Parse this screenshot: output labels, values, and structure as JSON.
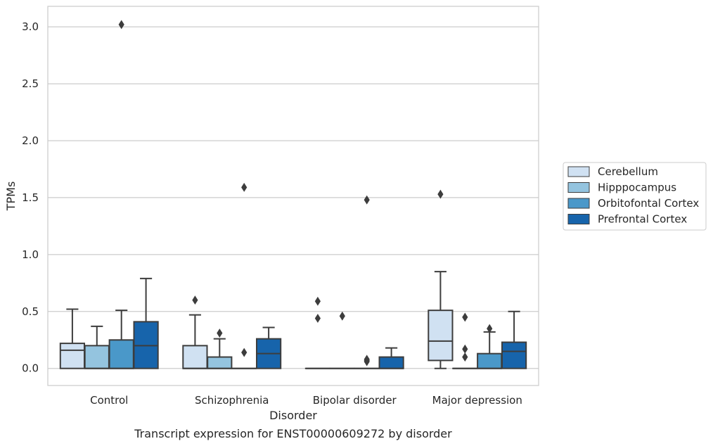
{
  "chart_data": {
    "type": "box",
    "caption": "Transcript expression for ENST00000609272 by disorder",
    "xlabel": "Disorder",
    "ylabel": "TPMs",
    "ylim": [
      -0.15,
      3.18
    ],
    "yticks": [
      "0.0",
      "0.5",
      "1.0",
      "1.5",
      "2.0",
      "2.5",
      "3.0"
    ],
    "categories": [
      "Control",
      "Schizophrenia",
      "Bipolar disorder",
      "Major depression"
    ],
    "grid": true,
    "legend_position": "right",
    "series": [
      {
        "name": "Cerebellum",
        "color": "#d0e1f2",
        "boxes": [
          {
            "whislo": 0.0,
            "q1": 0.0,
            "med": 0.16,
            "q3": 0.22,
            "whishi": 0.52,
            "fliers": []
          },
          {
            "whislo": 0.0,
            "q1": 0.0,
            "med": 0.0,
            "q3": 0.2,
            "whishi": 0.47,
            "fliers": [
              0.6
            ]
          },
          {
            "whislo": 0.0,
            "q1": 0.0,
            "med": 0.0,
            "q3": 0.0,
            "whishi": 0.0,
            "fliers": [
              0.44,
              0.59
            ]
          },
          {
            "whislo": 0.0,
            "q1": 0.07,
            "med": 0.24,
            "q3": 0.51,
            "whishi": 0.85,
            "fliers": [
              1.53
            ]
          }
        ]
      },
      {
        "name": "Hipppocampus",
        "color": "#94c4df",
        "boxes": [
          {
            "whislo": 0.0,
            "q1": 0.0,
            "med": 0.0,
            "q3": 0.2,
            "whishi": 0.37,
            "fliers": []
          },
          {
            "whislo": 0.0,
            "q1": 0.0,
            "med": 0.0,
            "q3": 0.1,
            "whishi": 0.26,
            "fliers": [
              0.31
            ]
          },
          {
            "whislo": 0.0,
            "q1": 0.0,
            "med": 0.0,
            "q3": 0.0,
            "whishi": 0.0,
            "fliers": [
              0.46
            ]
          },
          {
            "whislo": 0.0,
            "q1": 0.0,
            "med": 0.0,
            "q3": 0.0,
            "whishi": 0.0,
            "fliers": [
              0.1,
              0.17,
              0.45
            ]
          }
        ]
      },
      {
        "name": "Orbitofontal Cortex",
        "color": "#4a98c9",
        "boxes": [
          {
            "whislo": 0.0,
            "q1": 0.0,
            "med": 0.0,
            "q3": 0.25,
            "whishi": 0.51,
            "fliers": [
              3.02
            ]
          },
          {
            "whislo": 0.0,
            "q1": 0.0,
            "med": 0.0,
            "q3": 0.0,
            "whishi": 0.0,
            "fliers": [
              0.14,
              1.59
            ]
          },
          {
            "whislo": 0.0,
            "q1": 0.0,
            "med": 0.0,
            "q3": 0.0,
            "whishi": 0.0,
            "fliers": [
              0.06,
              0.07,
              0.08,
              1.48
            ]
          },
          {
            "whislo": 0.0,
            "q1": 0.0,
            "med": 0.0,
            "q3": 0.13,
            "whishi": 0.32,
            "fliers": [
              0.35
            ]
          }
        ]
      },
      {
        "name": "Prefrontal Cortex",
        "color": "#1764ab",
        "boxes": [
          {
            "whislo": 0.0,
            "q1": 0.0,
            "med": 0.2,
            "q3": 0.41,
            "whishi": 0.79,
            "fliers": []
          },
          {
            "whislo": 0.0,
            "q1": 0.0,
            "med": 0.13,
            "q3": 0.26,
            "whishi": 0.36,
            "fliers": []
          },
          {
            "whislo": 0.0,
            "q1": 0.0,
            "med": 0.0,
            "q3": 0.1,
            "whishi": 0.18,
            "fliers": []
          },
          {
            "whislo": 0.0,
            "q1": 0.0,
            "med": 0.15,
            "q3": 0.23,
            "whishi": 0.5,
            "fliers": []
          }
        ]
      }
    ]
  }
}
